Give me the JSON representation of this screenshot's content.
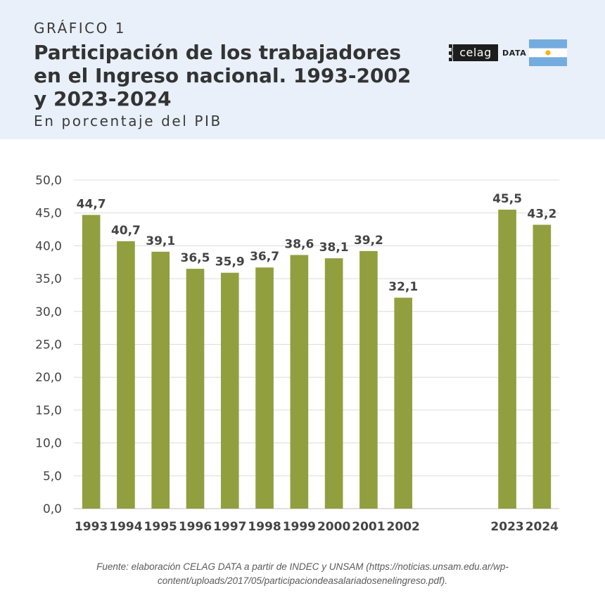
{
  "header": {
    "kicker": "GRÁFICO 1",
    "title": "Participación de los trabajadores en el Ingreso nacional. 1993-2002 y 2023-2024",
    "subtitle": "En porcentaje del PIB"
  },
  "brand": {
    "logo_text": "celag",
    "logo_suffix": "DATA",
    "flag_icon": "argentina-flag-icon",
    "colors": {
      "flag_blue": "#74acdf",
      "flag_white": "#ffffff",
      "flag_sun": "#f6b40e"
    }
  },
  "colors": {
    "bar": "#919f3f",
    "header_bg": "#e9f0fa",
    "grid": "#dcdcdc",
    "text": "#444444"
  },
  "chart_data": {
    "type": "bar",
    "title": "Participación de los trabajadores en el Ingreso nacional. 1993-2002 y 2023-2024",
    "subtitle": "En porcentaje del PIB",
    "xlabel": "",
    "ylabel": "",
    "ylim": [
      0,
      50
    ],
    "yticks": [
      "0,0",
      "5,0",
      "10,0",
      "15,0",
      "20,0",
      "25,0",
      "30,0",
      "35,0",
      "40,0",
      "45,0",
      "50,0"
    ],
    "categories": [
      "1993",
      "1994",
      "1995",
      "1996",
      "1997",
      "1998",
      "1999",
      "2000",
      "2001",
      "2002",
      "2023",
      "2024"
    ],
    "values": [
      44.7,
      40.7,
      39.1,
      36.5,
      35.9,
      36.7,
      38.6,
      38.1,
      39.2,
      32.1,
      45.5,
      43.2
    ],
    "value_labels": [
      "44,7",
      "40,7",
      "39,1",
      "36,5",
      "35,9",
      "36,7",
      "38,6",
      "38,1",
      "39,2",
      "32,1",
      "45,5",
      "43,2"
    ],
    "gap_after_index": 9,
    "grid": true,
    "legend": "none"
  },
  "source": "Fuente: elaboración CELAG DATA a partir de INDEC y UNSAM (https://noticias.unsam.edu.ar/wp-content/uploads/2017/05/participaciondeasalariadosenelingreso.pdf)."
}
